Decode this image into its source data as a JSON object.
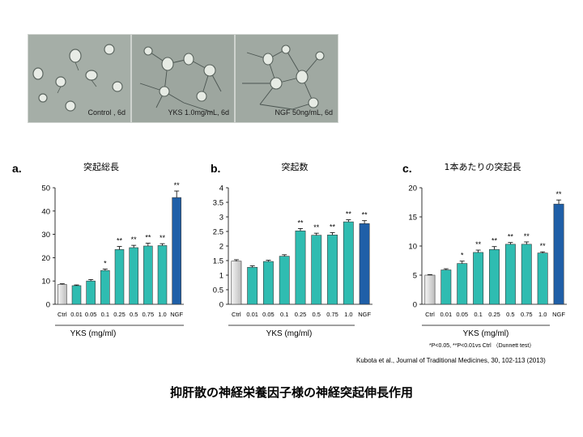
{
  "photos": [
    {
      "caption": "Control , 6d"
    },
    {
      "caption": "YKS 1.0mg/mL, 6d"
    },
    {
      "caption": "NGF 50ng/mL, 6d"
    }
  ],
  "chart_data": [
    {
      "type": "bar",
      "panel_letter": "a.",
      "title": "突起総長",
      "xlabel": "YKS (mg/ml)",
      "categories": [
        "Ctrl",
        "0.01",
        "0.05",
        "0.1",
        "0.25",
        "0.5",
        "0.75",
        "1.0",
        "NGF"
      ],
      "values": [
        8.5,
        8.0,
        10.0,
        14.5,
        23.5,
        24.3,
        25.0,
        25.2,
        45.8
      ],
      "errors": [
        0.3,
        0.3,
        0.6,
        0.6,
        1.3,
        1.0,
        1.2,
        0.8,
        2.8
      ],
      "significance": [
        "",
        "",
        "",
        "*",
        "**",
        "**",
        "**",
        "**",
        "**"
      ],
      "ylim": [
        0,
        50
      ],
      "yticks": [
        "0",
        "10",
        "20",
        "30",
        "40",
        "50"
      ],
      "bar_colors": {
        "ctrl": "#d9d9d9",
        "yks": "#2fbcb1",
        "ngf": "#1f5fa8"
      }
    },
    {
      "type": "bar",
      "panel_letter": "b.",
      "title": "突起数",
      "xlabel": "YKS (mg/ml)",
      "categories": [
        "Ctrl",
        "0.01",
        "0.05",
        "0.1",
        "0.25",
        "0.5",
        "0.75",
        "1.0",
        "NGF"
      ],
      "values": [
        1.48,
        1.27,
        1.47,
        1.65,
        2.52,
        2.37,
        2.38,
        2.83,
        2.77
      ],
      "errors": [
        0.05,
        0.05,
        0.04,
        0.05,
        0.08,
        0.07,
        0.08,
        0.07,
        0.1
      ],
      "significance": [
        "",
        "",
        "",
        "",
        "**",
        "**",
        "**",
        "**",
        "**"
      ],
      "ylim": [
        0,
        4
      ],
      "yticks": [
        "0",
        "0.5",
        "1",
        "1.5",
        "2",
        "2.5",
        "3",
        "3.5",
        "4"
      ],
      "bar_colors": {
        "ctrl": "#d9d9d9",
        "yks": "#2fbcb1",
        "ngf": "#1f5fa8"
      }
    },
    {
      "type": "bar",
      "panel_letter": "c.",
      "title": "1本あたりの突起長",
      "xlabel": "YKS (mg/ml)",
      "categories": [
        "Ctrl",
        "0.01",
        "0.05",
        "0.1",
        "0.25",
        "0.5",
        "0.75",
        "1.0",
        "NGF"
      ],
      "values": [
        5.0,
        5.9,
        7.0,
        8.9,
        9.4,
        10.3,
        10.3,
        8.8,
        17.2
      ],
      "errors": [
        0.1,
        0.2,
        0.4,
        0.4,
        0.5,
        0.3,
        0.4,
        0.2,
        0.7
      ],
      "significance": [
        "",
        "",
        "*",
        "**",
        "**",
        "**",
        "**",
        "**",
        "**"
      ],
      "ylim": [
        0,
        20
      ],
      "yticks": [
        "0",
        "5",
        "10",
        "15",
        "20"
      ],
      "bar_colors": {
        "ctrl": "#d9d9d9",
        "yks": "#2fbcb1",
        "ngf": "#1f5fa8"
      }
    }
  ],
  "stats_note": "*P<0.05, **P<0.01vs Ctrl （Dunnett test）",
  "citation": "Kubota et al., Journal of Traditional Medicines, 30, 102-113 (2013)",
  "slide_title": "抑肝散の神経栄養因子様の神経突起伸長作用"
}
